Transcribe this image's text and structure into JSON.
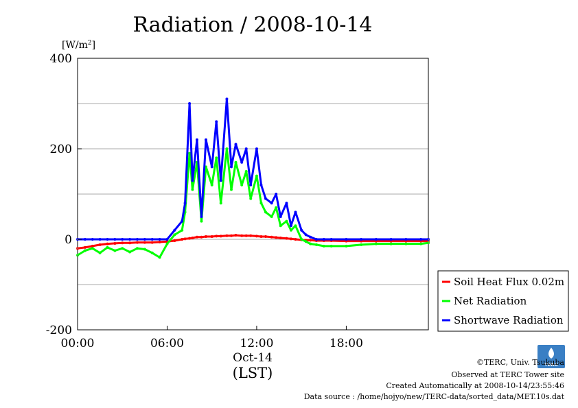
{
  "chart_data": {
    "type": "line",
    "title": "Radiation / 2008-10-14",
    "ylabel_unit": "[W/m",
    "ylabel_unit_sup": "2",
    "ylabel_unit_close": "]",
    "xlabel": "(LST)",
    "date_label": "Oct-14",
    "x_unit": "hours",
    "xlim": [
      0,
      23.5
    ],
    "ylim": [
      -200,
      400
    ],
    "grid": true,
    "y_ticks": [
      "-200",
      "0",
      "200",
      "400"
    ],
    "y_tick_values": [
      -200,
      0,
      200,
      400
    ],
    "y_gridlines": [
      -100,
      100,
      300
    ],
    "x_ticks": [
      "00:00",
      "06:00",
      "12:00",
      "18:00"
    ],
    "x_tick_values": [
      0,
      6,
      12,
      18
    ],
    "legend_position": "right",
    "x": [
      0,
      0.5,
      1,
      1.5,
      2,
      2.5,
      3,
      3.5,
      4,
      4.5,
      5,
      5.5,
      6,
      6.5,
      7,
      7.2,
      7.5,
      7.7,
      8,
      8.3,
      8.6,
      9,
      9.3,
      9.6,
      10,
      10.3,
      10.6,
      11,
      11.3,
      11.6,
      12,
      12.3,
      12.6,
      13,
      13.3,
      13.6,
      14,
      14.3,
      14.6,
      15,
      15.3,
      15.6,
      16,
      16.5,
      17,
      18,
      19,
      20,
      21,
      22,
      23,
      23.5
    ],
    "series": [
      {
        "name": "Soil Heat Flux 0.02m",
        "color": "#ff0000",
        "values": [
          -20,
          -18,
          -15,
          -12,
          -10,
          -9,
          -8,
          -8,
          -7,
          -7,
          -7,
          -6,
          -5,
          -3,
          0,
          1,
          2,
          3,
          5,
          5,
          6,
          6,
          7,
          7,
          8,
          8,
          9,
          8,
          8,
          8,
          7,
          6,
          6,
          5,
          4,
          3,
          2,
          1,
          0,
          -1,
          -2,
          -2,
          -3,
          -3,
          -3,
          -4,
          -4,
          -4,
          -4,
          -4,
          -4,
          -4
        ]
      },
      {
        "name": "Net Radiation",
        "color": "#00ff00",
        "values": [
          -35,
          -25,
          -20,
          -30,
          -18,
          -25,
          -20,
          -28,
          -20,
          -22,
          -30,
          -40,
          -10,
          10,
          20,
          60,
          190,
          110,
          170,
          40,
          160,
          120,
          180,
          80,
          200,
          110,
          170,
          120,
          150,
          90,
          140,
          80,
          60,
          50,
          70,
          30,
          40,
          20,
          30,
          0,
          -5,
          -10,
          -12,
          -15,
          -15,
          -15,
          -12,
          -10,
          -10,
          -10,
          -10,
          -8
        ]
      },
      {
        "name": "Shortwave Radiation",
        "color": "#0000ff",
        "values": [
          0,
          0,
          0,
          0,
          0,
          0,
          0,
          0,
          0,
          0,
          0,
          0,
          0,
          20,
          40,
          80,
          300,
          130,
          220,
          50,
          220,
          160,
          260,
          130,
          310,
          160,
          210,
          170,
          200,
          120,
          200,
          120,
          90,
          80,
          100,
          50,
          80,
          30,
          60,
          20,
          10,
          5,
          0,
          0,
          0,
          0,
          0,
          0,
          0,
          0,
          0,
          0
        ]
      }
    ]
  },
  "credits": {
    "copyright": "©TERC, Univ. Tsukuba",
    "observed": "Observed at TERC Tower site",
    "created": "Created Automatically at 2008-10-14/23:55:46",
    "source": "Data source : /home/hojyo/new/TERC-data/sorted_data/MET.10s.dat"
  },
  "logo_text": "TERC"
}
